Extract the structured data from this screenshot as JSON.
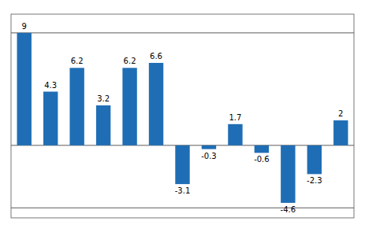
{
  "chart_data": {
    "type": "bar",
    "categories": [
      null,
      null,
      null,
      null,
      null,
      null,
      null,
      null,
      null,
      null,
      null,
      null,
      null
    ],
    "values": [
      9,
      4.3,
      6.2,
      3.2,
      6.2,
      6.6,
      -3.1,
      -0.3,
      1.7,
      -0.6,
      -4.6,
      -2.3,
      2
    ],
    "color": "#1F6EB5",
    "ylim": [
      -5.8,
      10.5
    ],
    "yticks": [
      -5,
      0,
      9
    ],
    "grid": true,
    "data_labels": true,
    "tick_labels": false
  }
}
